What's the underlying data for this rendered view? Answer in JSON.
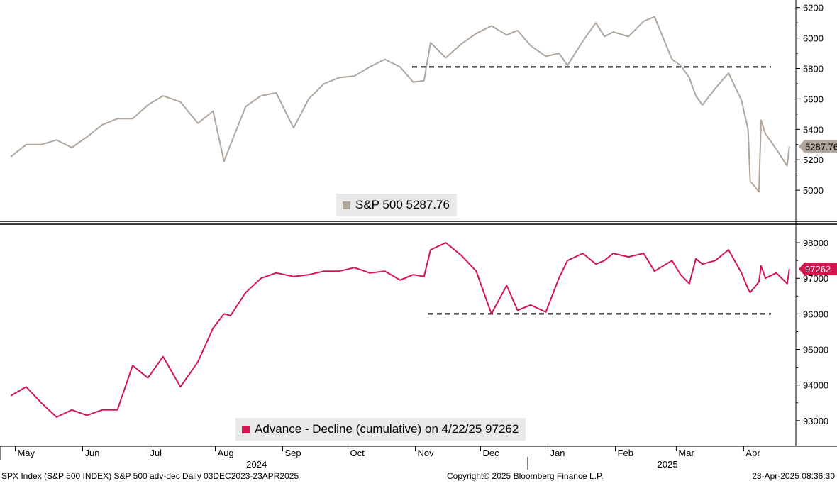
{
  "chart_data": [
    {
      "type": "line",
      "title": "",
      "ylim": [
        4800,
        6250
      ],
      "yticks": [
        5000,
        5200,
        5400,
        5600,
        5800,
        6000,
        6200
      ],
      "last_value_label": "5287.76",
      "reference_line": 5810,
      "colors": {
        "line": "#b0a69c",
        "label_bg": "#b0a69c",
        "reference": "#000000"
      },
      "series": [
        {
          "name": "S&P 500 5287.76",
          "x": [
            "2024-04-29",
            "2024-05-06",
            "2024-05-13",
            "2024-05-20",
            "2024-05-27",
            "2024-06-03",
            "2024-06-10",
            "2024-06-17",
            "2024-06-24",
            "2024-07-01",
            "2024-07-08",
            "2024-07-16",
            "2024-07-24",
            "2024-07-31",
            "2024-08-05",
            "2024-08-08",
            "2024-08-15",
            "2024-08-22",
            "2024-08-29",
            "2024-09-06",
            "2024-09-13",
            "2024-09-20",
            "2024-09-27",
            "2024-10-04",
            "2024-10-11",
            "2024-10-18",
            "2024-10-25",
            "2024-10-31",
            "2024-11-05",
            "2024-11-08",
            "2024-11-15",
            "2024-11-22",
            "2024-11-29",
            "2024-12-06",
            "2024-12-13",
            "2024-12-18",
            "2024-12-24",
            "2024-12-31",
            "2025-01-06",
            "2025-01-10",
            "2025-01-17",
            "2025-01-23",
            "2025-01-27",
            "2025-01-31",
            "2025-02-07",
            "2025-02-14",
            "2025-02-19",
            "2025-02-27",
            "2025-03-03",
            "2025-03-07",
            "2025-03-10",
            "2025-03-13",
            "2025-03-19",
            "2025-03-25",
            "2025-03-31",
            "2025-04-03",
            "2025-04-04",
            "2025-04-08",
            "2025-04-09",
            "2025-04-11",
            "2025-04-16",
            "2025-04-21",
            "2025-04-22"
          ],
          "values": [
            5220,
            5300,
            5300,
            5330,
            5280,
            5350,
            5430,
            5470,
            5470,
            5560,
            5620,
            5580,
            5440,
            5520,
            5190,
            5300,
            5550,
            5620,
            5640,
            5410,
            5600,
            5700,
            5740,
            5750,
            5810,
            5860,
            5810,
            5710,
            5720,
            5970,
            5870,
            5960,
            6030,
            6080,
            6020,
            6050,
            5950,
            5880,
            5900,
            5820,
            5980,
            6100,
            6010,
            6040,
            6010,
            6110,
            6140,
            5860,
            5820,
            5740,
            5620,
            5560,
            5670,
            5770,
            5590,
            5400,
            5060,
            4990,
            5460,
            5370,
            5270,
            5160,
            5287.76
          ]
        }
      ],
      "legend_label": "S&P 500 5287.76"
    },
    {
      "type": "line",
      "title": "",
      "ylim": [
        92300,
        98500
      ],
      "yticks": [
        93000,
        94000,
        95000,
        96000,
        97000,
        98000
      ],
      "last_value_label": "97262",
      "reference_line": 96000,
      "colors": {
        "line": "#d0174f",
        "label_bg": "#d0174f",
        "reference": "#000000"
      },
      "series": [
        {
          "name": "Advance - Decline (cumulative) on 4/22/25 97262",
          "x": [
            "2024-04-29",
            "2024-05-06",
            "2024-05-13",
            "2024-05-20",
            "2024-05-27",
            "2024-06-03",
            "2024-06-10",
            "2024-06-17",
            "2024-06-24",
            "2024-07-01",
            "2024-07-08",
            "2024-07-16",
            "2024-07-24",
            "2024-07-31",
            "2024-08-05",
            "2024-08-08",
            "2024-08-15",
            "2024-08-22",
            "2024-08-29",
            "2024-09-06",
            "2024-09-13",
            "2024-09-20",
            "2024-09-27",
            "2024-10-04",
            "2024-10-11",
            "2024-10-18",
            "2024-10-25",
            "2024-10-31",
            "2024-11-05",
            "2024-11-08",
            "2024-11-15",
            "2024-11-22",
            "2024-11-29",
            "2024-12-06",
            "2024-12-13",
            "2024-12-18",
            "2024-12-24",
            "2024-12-31",
            "2025-01-06",
            "2025-01-10",
            "2025-01-17",
            "2025-01-23",
            "2025-01-27",
            "2025-01-31",
            "2025-02-07",
            "2025-02-14",
            "2025-02-19",
            "2025-02-27",
            "2025-03-03",
            "2025-03-07",
            "2025-03-10",
            "2025-03-13",
            "2025-03-19",
            "2025-03-25",
            "2025-03-31",
            "2025-04-03",
            "2025-04-04",
            "2025-04-08",
            "2025-04-09",
            "2025-04-11",
            "2025-04-16",
            "2025-04-21",
            "2025-04-22"
          ],
          "values": [
            93700,
            93950,
            93500,
            93100,
            93300,
            93150,
            93300,
            93300,
            94550,
            94200,
            94800,
            93950,
            94650,
            95600,
            96000,
            95950,
            96600,
            97000,
            97150,
            97050,
            97100,
            97200,
            97200,
            97300,
            97150,
            97200,
            96950,
            97100,
            97050,
            97800,
            98000,
            97650,
            97200,
            96000,
            96800,
            96100,
            96250,
            96050,
            97000,
            97500,
            97700,
            97400,
            97500,
            97700,
            97600,
            97700,
            97200,
            97500,
            97100,
            96850,
            97550,
            97400,
            97500,
            97800,
            97150,
            96700,
            96600,
            96900,
            97350,
            97000,
            97150,
            96850,
            97262
          ]
        }
      ],
      "legend_label": "Advance - Decline (cumulative) on 4/22/25 97262"
    }
  ],
  "x_axis": {
    "months": [
      {
        "label": "May",
        "date": "2024-05-01"
      },
      {
        "label": "Jun",
        "date": "2024-06-01"
      },
      {
        "label": "Jul",
        "date": "2024-07-01"
      },
      {
        "label": "Aug",
        "date": "2024-08-01"
      },
      {
        "label": "Sep",
        "date": "2024-09-01"
      },
      {
        "label": "Oct",
        "date": "2024-10-01"
      },
      {
        "label": "Nov",
        "date": "2024-11-01"
      },
      {
        "label": "Dec",
        "date": "2024-12-01"
      },
      {
        "label": "Jan",
        "date": "2025-01-01"
      },
      {
        "label": "Feb",
        "date": "2025-02-01"
      },
      {
        "label": "Mar",
        "date": "2025-03-01"
      },
      {
        "label": "Apr",
        "date": "2025-04-01"
      }
    ],
    "years": [
      {
        "label": "2024",
        "date": "2024-08-20"
      },
      {
        "label": "2025",
        "date": "2025-02-25"
      }
    ]
  },
  "footer": {
    "left": "SPX Index (S&P 500 INDEX) S&P 500 adv-dec  Daily 03DEC2023-23APR2025",
    "center": "Copyright© 2025 Bloomberg Finance L.P.",
    "right": "23-Apr-2025 08:36:30"
  }
}
